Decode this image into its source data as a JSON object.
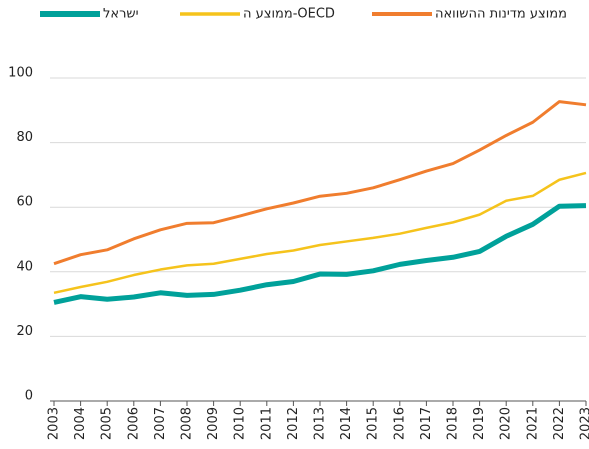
{
  "chart_data": {
    "type": "line",
    "x": [
      2003,
      2004,
      2005,
      2006,
      2007,
      2008,
      2009,
      2010,
      2011,
      2012,
      2013,
      2014,
      2015,
      2016,
      2017,
      2018,
      2019,
      2020,
      2021,
      2022,
      2023
    ],
    "xlim": [
      2003,
      2023
    ],
    "xticks": [
      2003,
      2004,
      2005,
      2006,
      2007,
      2008,
      2009,
      2010,
      2011,
      2012,
      2013,
      2014,
      2015,
      2016,
      2017,
      2018,
      2019,
      2020,
      2021,
      2022,
      2023
    ],
    "ylim": [
      0,
      100
    ],
    "yticks": [
      0,
      20,
      40,
      60,
      80,
      100
    ],
    "grid": true,
    "legend": "top",
    "series": [
      {
        "name": "ישראל",
        "color": "#00a19a",
        "width": 5,
        "values": [
          30.5,
          32.3,
          31.5,
          32.2,
          33.5,
          32.7,
          33,
          34.3,
          36,
          37,
          39.3,
          39.2,
          40.3,
          42.3,
          43.5,
          44.5,
          46.3,
          51,
          54.7,
          60.3,
          60.5
        ]
      },
      {
        "name": "ממוצע ה-OECD",
        "color": "#f5c31c",
        "width": 2.5,
        "values": [
          33.5,
          35.3,
          36.9,
          39,
          40.7,
          42,
          42.5,
          44,
          45.5,
          46.6,
          48.3,
          49.4,
          50.5,
          51.8,
          53.6,
          55.3,
          57.7,
          62,
          63.5,
          68.5,
          70.6
        ]
      },
      {
        "name": "ממוצע מדינות ההשוואה",
        "color": "#f07d2e",
        "width": 3,
        "values": [
          42.5,
          45.3,
          46.8,
          50.2,
          53,
          55,
          55.2,
          57.3,
          59.5,
          61.3,
          63.4,
          64.3,
          66,
          68.5,
          71.2,
          73.5,
          77.7,
          82.2,
          86.3,
          92.7,
          91.7
        ]
      }
    ]
  }
}
